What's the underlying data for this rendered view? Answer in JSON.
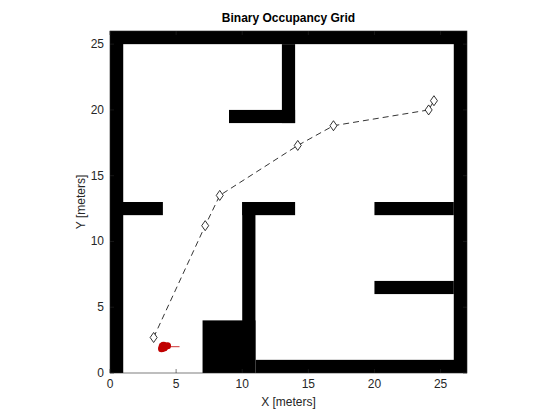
{
  "chart_data": {
    "type": "scatter",
    "title": "Binary Occupancy Grid",
    "x_label": "X [meters]",
    "y_label": "Y [meters]",
    "xlim": [
      0,
      27
    ],
    "ylim": [
      0,
      26
    ],
    "xticks": [
      0,
      5,
      10,
      15,
      20,
      25
    ],
    "yticks": [
      0,
      5,
      10,
      15,
      20,
      25
    ],
    "grid": false,
    "obstacles": {
      "color": "#000000",
      "rects": [
        {
          "x0": 0,
          "x1": 1,
          "y0": 0,
          "y1": 26
        },
        {
          "x0": 26,
          "x1": 27,
          "y0": 0,
          "y1": 26
        },
        {
          "x0": 0,
          "x1": 27,
          "y0": 25,
          "y1": 26
        },
        {
          "x0": 11,
          "x1": 27,
          "y0": 0,
          "y1": 1
        },
        {
          "x0": 7,
          "x1": 11,
          "y0": 0,
          "y1": 4
        },
        {
          "x0": 10,
          "x1": 11,
          "y0": 1,
          "y1": 13
        },
        {
          "x0": 10,
          "x1": 14,
          "y0": 12,
          "y1": 13
        },
        {
          "x0": 0,
          "x1": 4,
          "y0": 12,
          "y1": 13
        },
        {
          "x0": 20,
          "x1": 26,
          "y0": 12,
          "y1": 13
        },
        {
          "x0": 20,
          "x1": 26,
          "y0": 6,
          "y1": 7
        },
        {
          "x0": 13,
          "x1": 14,
          "y0": 19,
          "y1": 25
        },
        {
          "x0": 9,
          "x1": 14,
          "y0": 19,
          "y1": 20
        }
      ]
    },
    "series": [
      {
        "x": [
          3.3,
          7.2,
          8.3,
          14.2,
          16.9,
          24.1,
          24.5
        ],
        "values": [
          2.7,
          11.2,
          13.5,
          17.3,
          18.8,
          20.0,
          20.7
        ],
        "color": "#000000",
        "marker": "diamond",
        "line_style": "dashed"
      },
      {
        "x": [
          4.2
        ],
        "values": [
          2.0
        ],
        "color": "#c00000",
        "marker": "circle",
        "line_style": "none"
      }
    ]
  }
}
